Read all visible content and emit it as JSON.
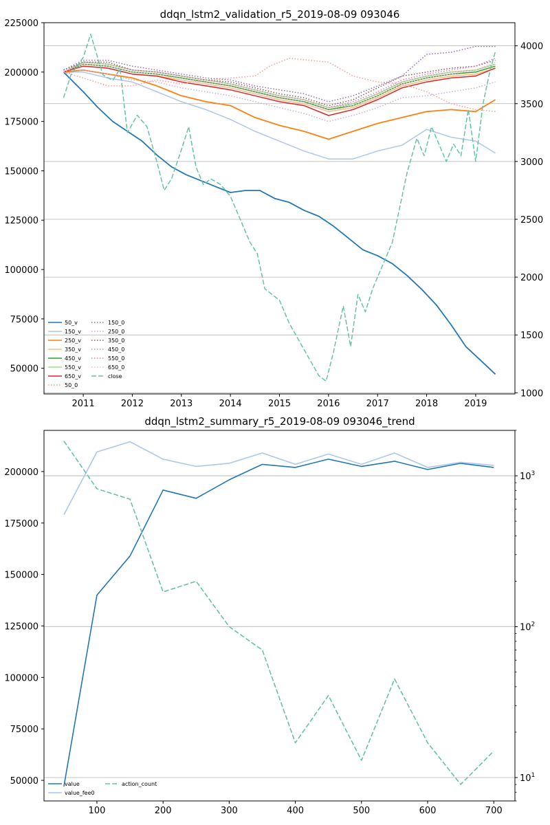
{
  "chart_data": [
    {
      "type": "line",
      "title": "ddqn_lstm2_validation_r5_2019-08-09 093046",
      "x_ticks": [
        "2011",
        "2012",
        "2013",
        "2014",
        "2015",
        "2016",
        "2017",
        "2018",
        "2019"
      ],
      "x_range": [
        2010.2,
        2019.8
      ],
      "y_left": {
        "range": [
          37000,
          225000
        ],
        "ticks": [
          50000,
          75000,
          100000,
          125000,
          150000,
          175000,
          200000,
          225000
        ]
      },
      "y_right": {
        "range": [
          990,
          4200
        ],
        "ticks": [
          1000,
          1500,
          2000,
          2500,
          3000,
          3500,
          4000
        ]
      },
      "grid": "y-right",
      "legend_position": "lower-left",
      "legend_cols": [
        [
          "50_v",
          "150_v",
          "250_v",
          "350_v",
          "450_v",
          "550_v",
          "650_v",
          "50_0"
        ],
        [
          "150_0",
          "250_0",
          "350_0",
          "450_0",
          "550_0",
          "650_0",
          "close"
        ]
      ],
      "series": [
        {
          "name": "50_v",
          "color": "#1f77b4",
          "style": "solid",
          "axis": "left",
          "x": [
            2010.6,
            2010.8,
            2011.0,
            2011.3,
            2011.6,
            2011.9,
            2012.2,
            2012.5,
            2012.8,
            2013.1,
            2013.4,
            2013.7,
            2014.0,
            2014.3,
            2014.6,
            2014.9,
            2015.2,
            2015.5,
            2015.8,
            2016.1,
            2016.4,
            2016.7,
            2017.0,
            2017.3,
            2017.6,
            2017.9,
            2018.2,
            2018.5,
            2018.8,
            2019.1,
            2019.4
          ],
          "y": [
            200000,
            195000,
            190000,
            182000,
            175000,
            170000,
            165000,
            158000,
            152000,
            148000,
            145000,
            142000,
            139000,
            140000,
            140000,
            136000,
            134000,
            130000,
            127000,
            122000,
            116000,
            110000,
            107000,
            103000,
            97000,
            90000,
            82000,
            72000,
            61000,
            54000,
            47000
          ]
        },
        {
          "name": "150_v",
          "color": "#aec7e8",
          "style": "solid",
          "axis": "left",
          "x": [
            2010.6,
            2011.0,
            2011.5,
            2012.0,
            2012.5,
            2013.0,
            2013.5,
            2014.0,
            2014.5,
            2015.0,
            2015.5,
            2016.0,
            2016.5,
            2017.0,
            2017.5,
            2018.0,
            2018.5,
            2019.0,
            2019.4
          ],
          "y": [
            200000,
            200000,
            197000,
            195000,
            190000,
            185000,
            181000,
            176000,
            170000,
            165000,
            160000,
            156000,
            156000,
            160000,
            163000,
            171000,
            167000,
            165000,
            159000
          ]
        },
        {
          "name": "250_v",
          "color": "#ff7f0e",
          "style": "solid",
          "axis": "left",
          "x": [
            2010.6,
            2011.0,
            2011.5,
            2012.0,
            2012.5,
            2013.0,
            2013.5,
            2014.0,
            2014.5,
            2015.0,
            2015.5,
            2016.0,
            2016.5,
            2017.0,
            2017.5,
            2018.0,
            2018.5,
            2019.0,
            2019.4
          ],
          "y": [
            200000,
            201000,
            199000,
            197000,
            193000,
            188000,
            185000,
            183000,
            177000,
            173000,
            170000,
            166000,
            170000,
            174000,
            177000,
            180000,
            181000,
            180000,
            186000
          ]
        },
        {
          "name": "350_v",
          "color": "#ffbb78",
          "style": "solid",
          "axis": "left",
          "x": [
            2010.6,
            2011.0,
            2011.5,
            2012.0,
            2012.5,
            2013.0,
            2013.5,
            2014.0,
            2014.5,
            2015.0,
            2015.5,
            2016.0,
            2016.5,
            2017.0,
            2017.5,
            2018.0,
            2018.5,
            2019.0,
            2019.4
          ],
          "y": [
            200000,
            203000,
            202000,
            199000,
            198000,
            196000,
            194000,
            192000,
            189000,
            186000,
            184000,
            180000,
            182000,
            187000,
            193000,
            196000,
            198000,
            199000,
            202000
          ]
        },
        {
          "name": "450_v",
          "color": "#2ca02c",
          "style": "solid",
          "axis": "left",
          "x": [
            2010.6,
            2011.0,
            2011.5,
            2012.0,
            2012.5,
            2013.0,
            2013.5,
            2014.0,
            2014.5,
            2015.0,
            2015.5,
            2016.0,
            2016.5,
            2017.0,
            2017.5,
            2018.0,
            2018.5,
            2019.0,
            2019.4
          ],
          "y": [
            200000,
            204000,
            203000,
            200000,
            199000,
            197000,
            195000,
            193000,
            190000,
            187000,
            185000,
            181000,
            183000,
            188000,
            194000,
            197000,
            199000,
            200000,
            203000
          ]
        },
        {
          "name": "550_v",
          "color": "#98df8a",
          "style": "solid",
          "axis": "left",
          "x": [
            2010.6,
            2011.0,
            2011.5,
            2012.0,
            2012.5,
            2013.0,
            2013.5,
            2014.0,
            2014.5,
            2015.0,
            2015.5,
            2016.0,
            2016.5,
            2017.0,
            2017.5,
            2018.0,
            2018.5,
            2019.0,
            2019.4
          ],
          "y": [
            200000,
            205000,
            204000,
            201000,
            200000,
            198000,
            196000,
            194000,
            191000,
            188000,
            186000,
            182000,
            184000,
            189000,
            195000,
            198000,
            200000,
            201000,
            204000
          ]
        },
        {
          "name": "650_v",
          "color": "#d62728",
          "style": "solid",
          "axis": "left",
          "x": [
            2010.6,
            2011.0,
            2011.5,
            2012.0,
            2012.5,
            2013.0,
            2013.5,
            2014.0,
            2014.5,
            2015.0,
            2015.5,
            2016.0,
            2016.5,
            2017.0,
            2017.5,
            2018.0,
            2018.5,
            2019.0,
            2019.4
          ],
          "y": [
            200000,
            203000,
            202000,
            199000,
            198000,
            195000,
            193000,
            191000,
            188000,
            185000,
            183000,
            178000,
            181000,
            186000,
            192000,
            195000,
            197000,
            198000,
            202000
          ]
        },
        {
          "name": "50_0",
          "color": "#ff9896",
          "style": "dotted",
          "axis": "left",
          "x": [
            2010.6,
            2011.0,
            2011.5,
            2012.0,
            2012.5,
            2013.0,
            2013.5,
            2014.0,
            2014.5,
            2014.8,
            2015.2,
            2015.6,
            2016.0,
            2016.5,
            2017.0,
            2017.5,
            2018.0,
            2018.5,
            2019.0,
            2019.4
          ],
          "y": [
            200000,
            197000,
            193000,
            193000,
            196000,
            194000,
            196000,
            197000,
            198000,
            203000,
            207000,
            206000,
            205000,
            198000,
            195000,
            194000,
            190000,
            184000,
            181000,
            180000
          ]
        },
        {
          "name": "150_0",
          "color": "#9467bd",
          "style": "dotted",
          "axis": "left",
          "x": [
            2010.6,
            2011.0,
            2011.5,
            2012.0,
            2012.5,
            2013.0,
            2013.5,
            2014.0,
            2014.5,
            2015.0,
            2015.5,
            2016.0,
            2016.5,
            2017.0,
            2017.5,
            2018.0,
            2018.5,
            2019.0,
            2019.4
          ],
          "y": [
            201000,
            206000,
            206000,
            203000,
            201000,
            199000,
            197000,
            196000,
            193000,
            191000,
            189000,
            185000,
            188000,
            193000,
            198000,
            209000,
            210000,
            213000,
            213000
          ]
        },
        {
          "name": "250_0",
          "color": "#c5b0d5",
          "style": "dotted",
          "axis": "left",
          "x": [
            2010.6,
            2011.0,
            2011.5,
            2012.0,
            2012.5,
            2013.0,
            2013.5,
            2014.0,
            2014.5,
            2015.0,
            2015.5,
            2016.0,
            2016.5,
            2017.0,
            2017.5,
            2018.0,
            2018.5,
            2019.0,
            2019.4
          ],
          "y": [
            199000,
            201000,
            199000,
            196000,
            195000,
            192000,
            190000,
            188000,
            185000,
            182000,
            179000,
            175000,
            178000,
            182000,
            187000,
            188000,
            190000,
            192000,
            195000
          ]
        },
        {
          "name": "350_0",
          "color": "#8c564b",
          "style": "dotted",
          "axis": "left",
          "x": [
            2010.6,
            2011.0,
            2011.5,
            2012.0,
            2012.5,
            2013.0,
            2013.5,
            2014.0,
            2014.5,
            2015.0,
            2015.5,
            2016.0,
            2016.5,
            2017.0,
            2017.5,
            2018.0,
            2018.5,
            2019.0,
            2019.4
          ],
          "y": [
            201000,
            205000,
            205000,
            201000,
            200000,
            198000,
            196000,
            195000,
            192000,
            189000,
            187000,
            183000,
            186000,
            192000,
            198000,
            200000,
            202000,
            203000,
            206000
          ]
        },
        {
          "name": "450_0",
          "color": "#c49c94",
          "style": "dotted",
          "axis": "left",
          "x": [
            2010.6,
            2011.0,
            2011.5,
            2012.0,
            2012.5,
            2013.0,
            2013.5,
            2014.0,
            2014.5,
            2015.0,
            2015.5,
            2016.0,
            2016.5,
            2017.0,
            2017.5,
            2018.0,
            2018.5,
            2019.0,
            2019.4
          ],
          "y": [
            200000,
            204000,
            203000,
            200000,
            199000,
            197000,
            195000,
            193000,
            190000,
            187000,
            185000,
            181000,
            184000,
            189000,
            195000,
            198000,
            200000,
            201000,
            204000
          ]
        },
        {
          "name": "550_0",
          "color": "#e377c2",
          "style": "dotted",
          "axis": "left",
          "x": [
            2010.6,
            2011.0,
            2011.5,
            2012.0,
            2012.5,
            2013.0,
            2013.5,
            2014.0,
            2014.5,
            2015.0,
            2015.5,
            2016.0,
            2016.5,
            2017.0,
            2017.5,
            2018.0,
            2018.5,
            2019.0,
            2019.4
          ],
          "y": [
            200000,
            205000,
            204000,
            201000,
            200000,
            198000,
            196000,
            194000,
            191000,
            188000,
            186000,
            182000,
            185000,
            190000,
            196000,
            199000,
            201000,
            203000,
            207000
          ]
        },
        {
          "name": "650_0",
          "color": "#f7b6d2",
          "style": "dotted",
          "axis": "left",
          "x": [
            2010.6,
            2011.0,
            2011.5,
            2012.0,
            2012.5,
            2013.0,
            2013.5,
            2014.0,
            2014.5,
            2015.0,
            2015.5,
            2016.0,
            2016.5,
            2017.0,
            2017.5,
            2018.0,
            2018.5,
            2019.0,
            2019.4
          ],
          "y": [
            200000,
            204000,
            203000,
            200000,
            199000,
            196000,
            194000,
            192000,
            189000,
            186000,
            184000,
            180000,
            183000,
            188000,
            194000,
            197000,
            199000,
            201000,
            205000
          ]
        },
        {
          "name": "close",
          "color": "#66c2a5",
          "style": "dashed",
          "axis": "right",
          "x": [
            2010.6,
            2010.75,
            2011.0,
            2011.15,
            2011.4,
            2011.6,
            2011.75,
            2011.9,
            2012.1,
            2012.3,
            2012.5,
            2012.65,
            2012.8,
            2013.0,
            2013.15,
            2013.3,
            2013.45,
            2013.6,
            2013.8,
            2014.0,
            2014.2,
            2014.4,
            2014.55,
            2014.7,
            2014.85,
            2015.0,
            2015.2,
            2015.4,
            2015.6,
            2015.8,
            2015.95,
            2016.1,
            2016.3,
            2016.45,
            2016.6,
            2016.75,
            2016.9,
            2017.1,
            2017.3,
            2017.45,
            2017.6,
            2017.8,
            2017.95,
            2018.1,
            2018.25,
            2018.4,
            2018.55,
            2018.7,
            2018.85,
            2019.0,
            2019.15,
            2019.3,
            2019.4
          ],
          "y": [
            3550,
            3750,
            3900,
            4100,
            3750,
            3700,
            3800,
            3250,
            3400,
            3300,
            3000,
            2750,
            2850,
            3100,
            3300,
            2950,
            2800,
            2850,
            2800,
            2700,
            2500,
            2300,
            2200,
            1900,
            1850,
            1800,
            1600,
            1450,
            1300,
            1150,
            1100,
            1350,
            1750,
            1400,
            1850,
            1700,
            1900,
            2100,
            2300,
            2600,
            2900,
            3200,
            3050,
            3300,
            3150,
            3000,
            3150,
            3050,
            3450,
            3000,
            3500,
            3800,
            3950
          ]
        }
      ]
    },
    {
      "type": "line",
      "title": "ddqn_lstm2_summary_r5_2019-08-09 093046_trend",
      "x_range": [
        20,
        732
      ],
      "x_ticks": [
        100,
        200,
        300,
        400,
        500,
        600,
        700
      ],
      "y_left": {
        "range": [
          40000,
          220000
        ],
        "ticks": [
          50000,
          75000,
          100000,
          125000,
          150000,
          175000,
          200000
        ]
      },
      "y_right": {
        "scale": "log",
        "range": [
          7,
          2000
        ],
        "ticks": [
          "10^1",
          "10^2",
          "10^3"
        ]
      },
      "grid": "y-right",
      "legend_position": "lower-left",
      "legend_cols": [
        [
          "value",
          "value_fee0"
        ],
        [
          "action_count"
        ]
      ],
      "x": [
        50,
        100,
        150,
        200,
        250,
        300,
        350,
        400,
        450,
        500,
        550,
        600,
        650,
        700
      ],
      "series": [
        {
          "name": "value",
          "color": "#1f77b4",
          "style": "solid",
          "axis": "left",
          "values": [
            47000,
            140000,
            159000,
            191000,
            187000,
            196000,
            203500,
            202000,
            206000,
            202500,
            205000,
            201000,
            204000,
            202000
          ]
        },
        {
          "name": "value_fee0",
          "color": "#aec7e8",
          "style": "solid",
          "axis": "left",
          "values": [
            179000,
            209500,
            214500,
            206000,
            202500,
            204000,
            209000,
            203500,
            208500,
            203500,
            209000,
            202000,
            204500,
            203000
          ]
        },
        {
          "name": "action_count",
          "color": "#66c2a5",
          "style": "dashed",
          "axis": "right",
          "values": [
            1700,
            820,
            700,
            170,
            200,
            100,
            70,
            17,
            35,
            13,
            45,
            17,
            9,
            15
          ]
        }
      ]
    }
  ]
}
